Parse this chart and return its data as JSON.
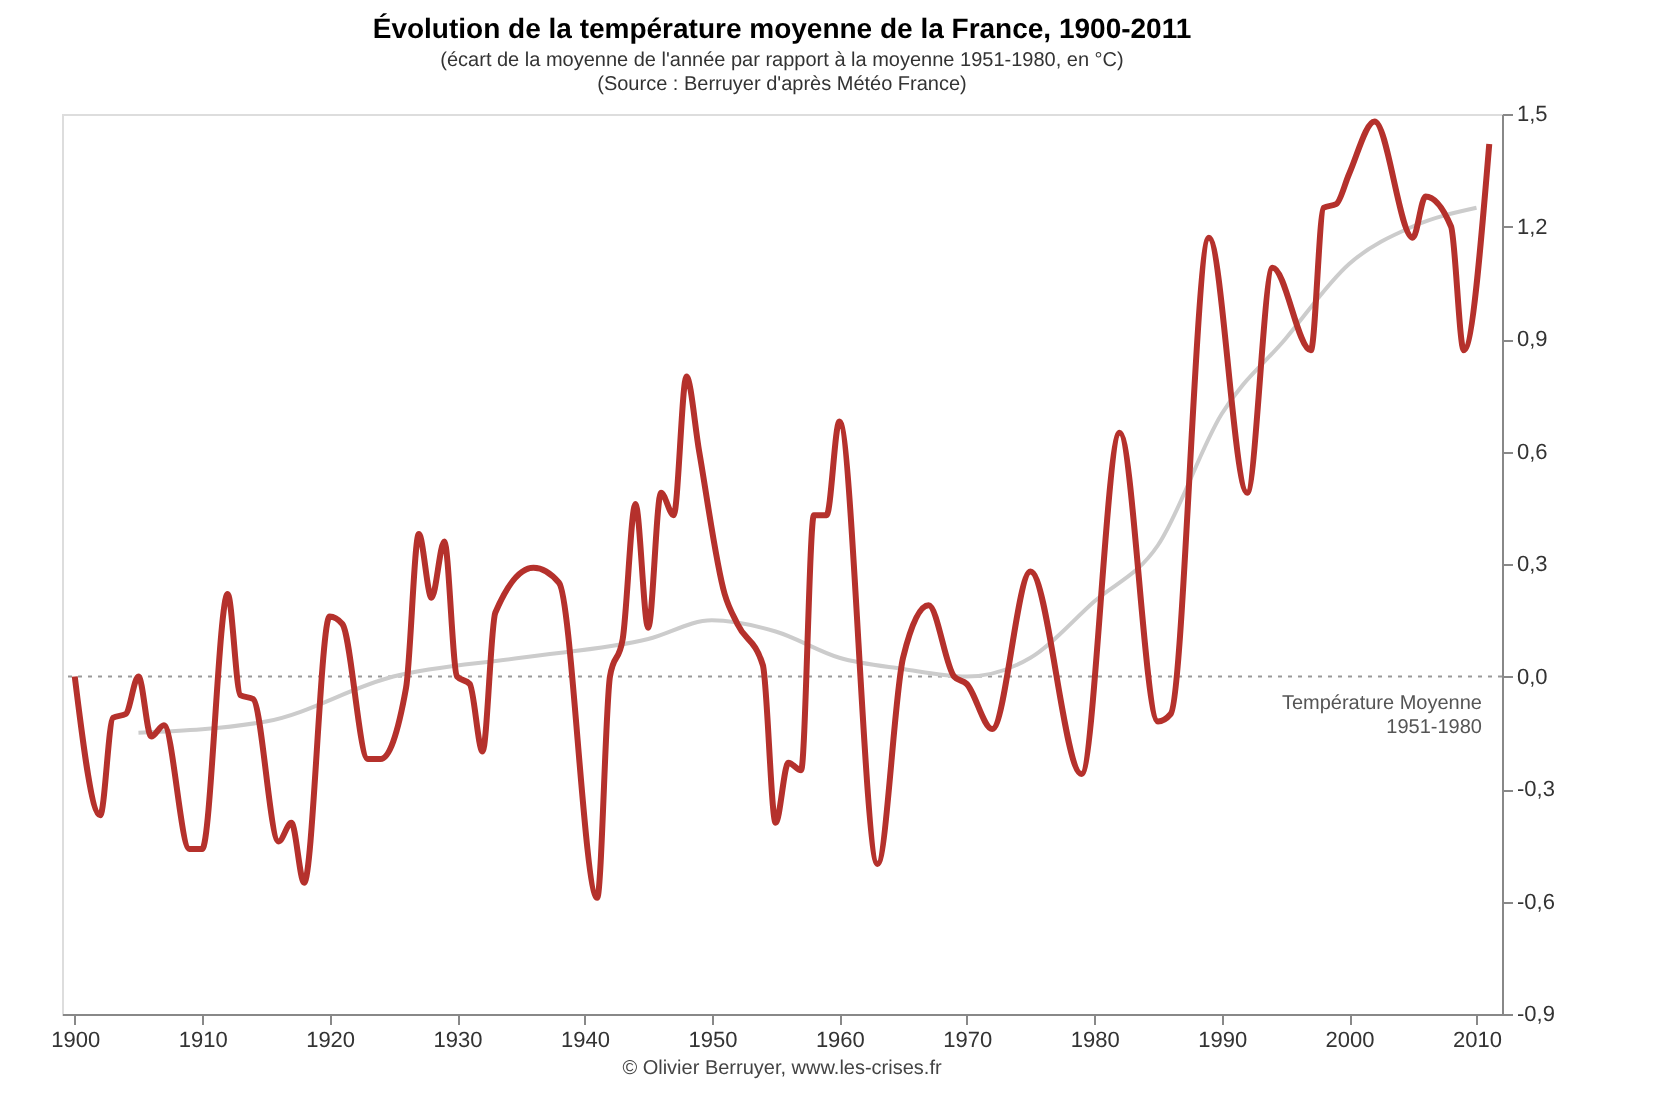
{
  "chart_data": {
    "type": "line",
    "title": "Évolution de la température moyenne de la France, 1900-2011",
    "subtitle": [
      "(écart de la moyenne de l'année par rapport à la moyenne 1951-1980, en °C)",
      "(Source : Berruyer d'après Météo France)"
    ],
    "x": [
      1900,
      1902,
      1903,
      1904,
      1905,
      1906,
      1907,
      1909,
      1910,
      1912,
      1913,
      1914,
      1916,
      1917,
      1918,
      1920,
      1921,
      1923,
      1924,
      1926,
      1927,
      1928,
      1929,
      1930,
      1931,
      1932,
      1933,
      1936,
      1938,
      1941,
      1942,
      1943,
      1944,
      1945,
      1946,
      1947,
      1948,
      1949,
      1951,
      1952,
      1954,
      1955,
      1956,
      1957,
      1958,
      1959,
      1960,
      1963,
      1965,
      1967,
      1969,
      1970,
      1972,
      1975,
      1979,
      1982,
      1985,
      1986,
      1989,
      1992,
      1994,
      1997,
      1998,
      1999,
      2000,
      2002,
      2005,
      2006,
      2008,
      2009,
      2011
    ],
    "series": [
      {
        "color": "#b5312c",
        "values": [
          0.0,
          -0.37,
          -0.11,
          -0.1,
          0.0,
          -0.16,
          -0.13,
          -0.46,
          -0.46,
          0.22,
          -0.05,
          -0.06,
          -0.44,
          -0.39,
          -0.55,
          0.16,
          0.14,
          -0.22,
          -0.22,
          -0.03,
          0.38,
          0.21,
          0.36,
          0.0,
          -0.02,
          -0.2,
          0.17,
          0.29,
          0.25,
          -0.59,
          0.0,
          0.1,
          0.46,
          0.13,
          0.49,
          0.43,
          0.8,
          0.6,
          0.22,
          0.14,
          0.03,
          -0.39,
          -0.23,
          -0.25,
          0.43,
          0.43,
          0.68,
          -0.5,
          0.05,
          0.19,
          0.0,
          -0.02,
          -0.14,
          0.28,
          -0.26,
          0.65,
          -0.12,
          -0.1,
          1.17,
          0.49,
          1.09,
          0.87,
          1.25,
          1.26,
          1.34,
          1.48,
          1.17,
          1.28,
          1.2,
          0.87,
          1.42
        ]
      },
      {
        "color": "#cccccc",
        "x": [
          1905,
          1915,
          1925,
          1935,
          1945,
          1950,
          1955,
          1960,
          1965,
          1970,
          1975,
          1980,
          1985,
          1990,
          1995,
          2000,
          2005,
          2010
        ],
        "values": [
          -0.15,
          -0.12,
          0.0,
          0.05,
          0.1,
          0.15,
          0.12,
          0.05,
          0.02,
          0.0,
          0.05,
          0.2,
          0.35,
          0.7,
          0.9,
          1.1,
          1.2,
          1.25
        ]
      }
    ],
    "xlim": [
      1899,
      2012
    ],
    "xticks": [
      1900,
      1910,
      1920,
      1930,
      1940,
      1950,
      1960,
      1970,
      1980,
      1990,
      2000,
      2010
    ],
    "ylim": [
      -0.9,
      1.5
    ],
    "yticks": [
      {
        "value": -0.9,
        "label": "-0,9"
      },
      {
        "value": -0.6,
        "label": "-0,6"
      },
      {
        "value": -0.3,
        "label": "-0,3"
      },
      {
        "value": 0.0,
        "label": "0,0"
      },
      {
        "value": 0.3,
        "label": "0,3"
      },
      {
        "value": 0.6,
        "label": "0,6"
      },
      {
        "value": 0.9,
        "label": "0,9"
      },
      {
        "value": 1.2,
        "label": "1,2"
      },
      {
        "value": 1.5,
        "label": "1,5"
      }
    ],
    "ref_lines": [
      {
        "axis": "y",
        "value": 0.0,
        "label": "Température Moyenne 1951-1980",
        "color": "#999999",
        "line_style": "dotted"
      }
    ],
    "annotations": [
      "© Olivier Berruyer, www.les-crises.fr"
    ],
    "grid": false,
    "line_style": "solid",
    "marker": "none"
  }
}
